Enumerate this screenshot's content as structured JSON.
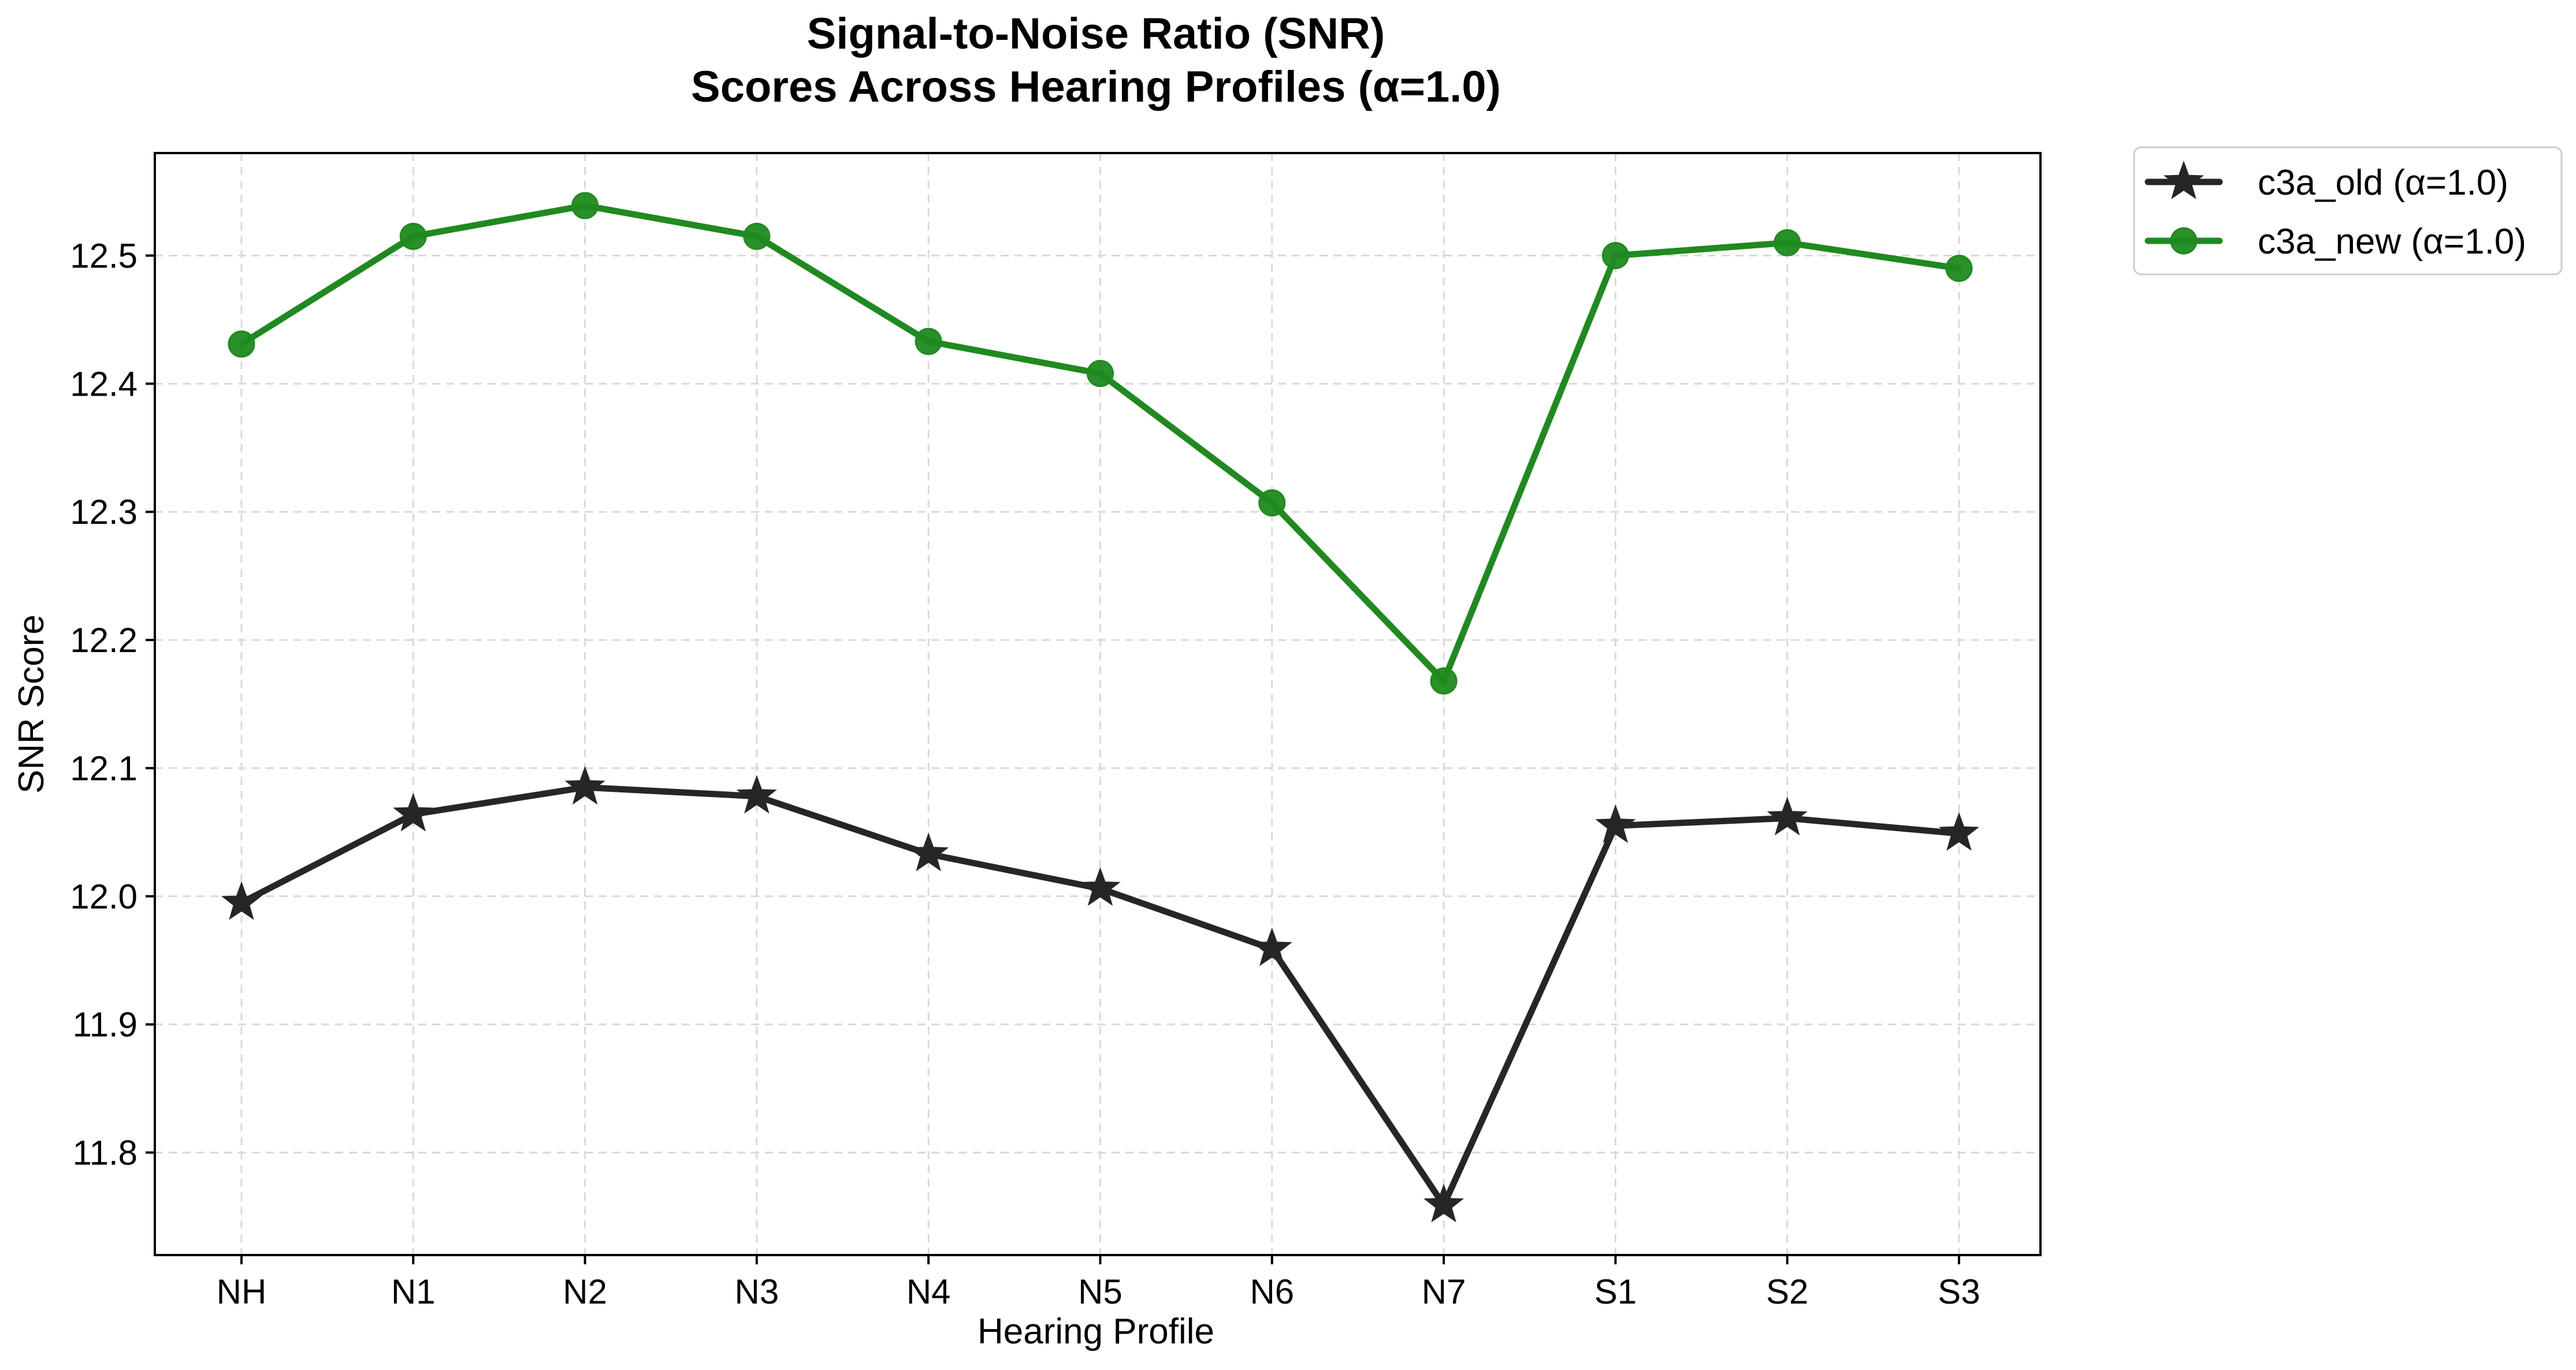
{
  "chart_data": {
    "type": "line",
    "title": [
      "Signal-to-Noise Ratio (SNR)",
      "Scores Across Hearing Profiles (α=1.0)"
    ],
    "xlabel": "Hearing Profile",
    "ylabel": "SNR Score",
    "categories": [
      "NH",
      "N1",
      "N2",
      "N3",
      "N4",
      "N5",
      "N6",
      "N7",
      "S1",
      "S2",
      "S3"
    ],
    "ylim": [
      11.72,
      12.58
    ],
    "yticks": [
      11.8,
      11.9,
      12.0,
      12.1,
      12.2,
      12.3,
      12.4,
      12.5
    ],
    "ytick_labels": [
      "11.8",
      "11.9",
      "12.0",
      "12.1",
      "12.2",
      "12.3",
      "12.4",
      "12.5"
    ],
    "grid": true,
    "legend_position": "outside top-right",
    "series": [
      {
        "name": "c3a_old (α=1.0)",
        "color": "#262626",
        "marker": "star",
        "values": [
          11.995,
          12.064,
          12.085,
          12.078,
          12.033,
          12.006,
          11.959,
          11.759,
          12.055,
          12.061,
          12.049
        ]
      },
      {
        "name": "c3a_new (α=1.0)",
        "color": "#1f8a1f",
        "marker": "circle",
        "values": [
          12.431,
          12.515,
          12.539,
          12.515,
          12.433,
          12.408,
          12.307,
          12.168,
          12.5,
          12.51,
          12.49
        ]
      }
    ]
  }
}
